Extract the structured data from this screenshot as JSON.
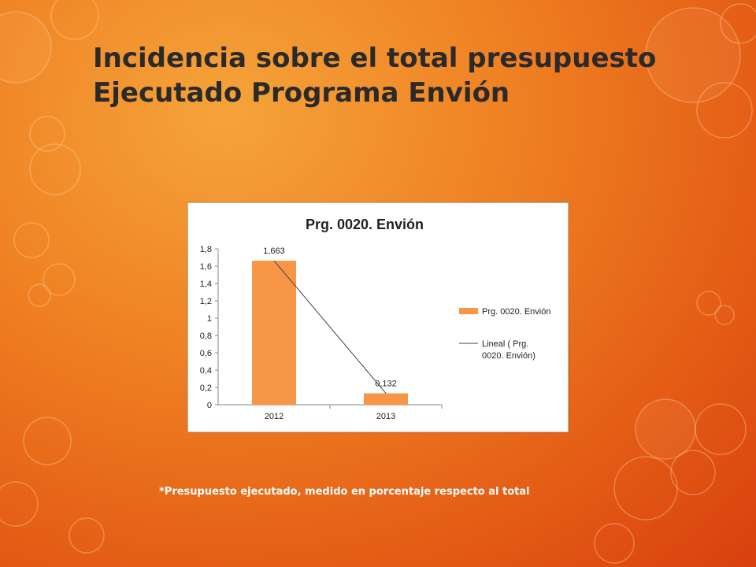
{
  "slide": {
    "title": "Incidencia sobre el total presupuesto Ejecutado Programa Envión",
    "footnote": "*Presupuesto ejecutado, medido en porcentaje respecto al total"
  },
  "colors": {
    "bar": "#f79646",
    "trendline": "#404040",
    "text": "#222222"
  },
  "chart_data": {
    "type": "bar",
    "title": "Prg. 0020. Envión",
    "categories": [
      "2012",
      "2013"
    ],
    "series": [
      {
        "name": "Prg. 0020. Envión",
        "values": [
          1.663,
          0.132
        ]
      }
    ],
    "data_labels": [
      "1,663",
      "0,132"
    ],
    "trendline": {
      "name": "Lineal ( Prg. 0020. Envión)",
      "type": "linear"
    },
    "yticks": [
      "0",
      "0,2",
      "0,4",
      "0,6",
      "0,8",
      "1",
      "1,2",
      "1,4",
      "1,6",
      "1,8"
    ],
    "ylim": [
      0,
      1.8
    ],
    "legend_position": "right",
    "grid": false
  }
}
